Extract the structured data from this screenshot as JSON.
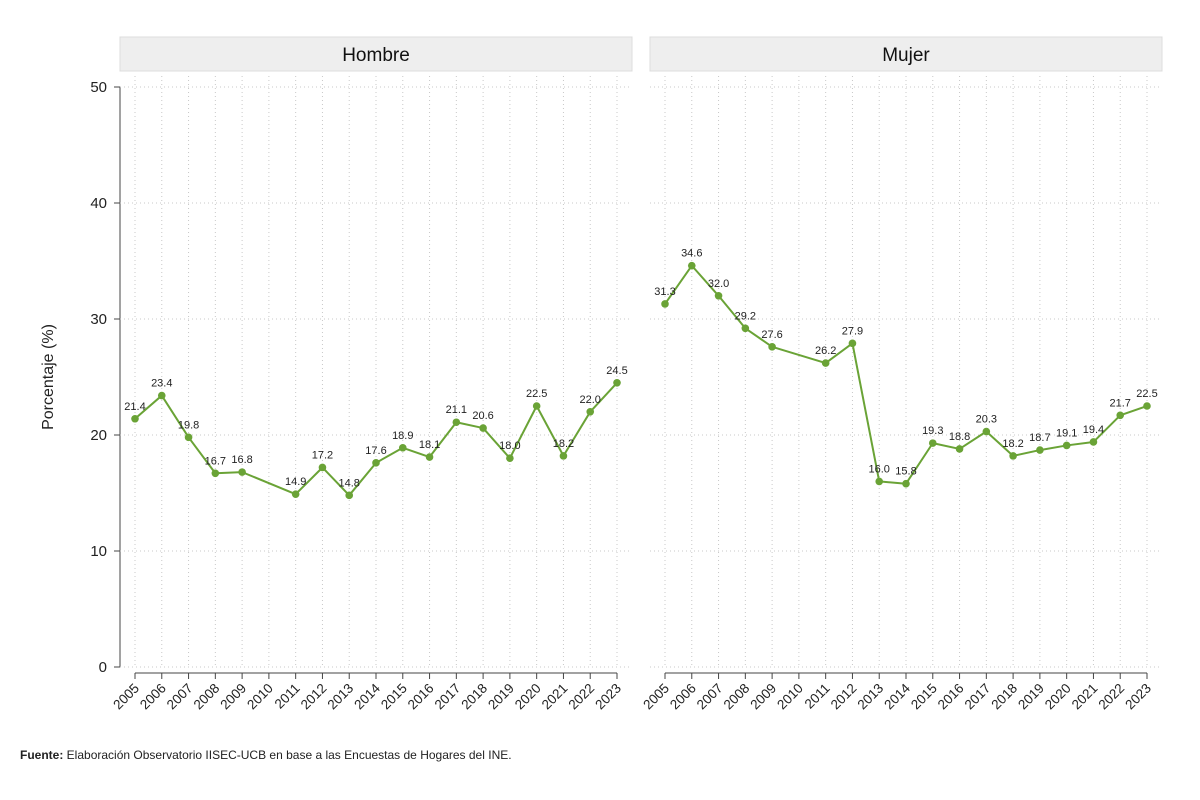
{
  "chart_data": {
    "type": "line",
    "ylabel": "Porcentaje (%)",
    "ylim": [
      0,
      50
    ],
    "yticks": [
      "0",
      "10",
      "20",
      "30",
      "40",
      "50"
    ],
    "grid": true,
    "line_color": "#6aa336",
    "years": [
      "2005",
      "2006",
      "2007",
      "2008",
      "2009",
      "2010",
      "2011",
      "2012",
      "2013",
      "2014",
      "2015",
      "2016",
      "2017",
      "2018",
      "2019",
      "2020",
      "2021",
      "2022",
      "2023"
    ],
    "panels": [
      {
        "title": "Hombre",
        "points": [
          {
            "x": "2005",
            "y": 21.4,
            "label": "21.4"
          },
          {
            "x": "2006",
            "y": 23.4,
            "label": "23.4"
          },
          {
            "x": "2007",
            "y": 19.8,
            "label": "19.8"
          },
          {
            "x": "2008",
            "y": 16.7,
            "label": "16.7"
          },
          {
            "x": "2009",
            "y": 16.8,
            "label": "16.8"
          },
          {
            "x": "2011",
            "y": 14.9,
            "label": "14.9"
          },
          {
            "x": "2012",
            "y": 17.2,
            "label": "17.2"
          },
          {
            "x": "2013",
            "y": 14.8,
            "label": "14.8"
          },
          {
            "x": "2014",
            "y": 17.6,
            "label": "17.6"
          },
          {
            "x": "2015",
            "y": 18.9,
            "label": "18.9"
          },
          {
            "x": "2016",
            "y": 18.1,
            "label": "18.1"
          },
          {
            "x": "2017",
            "y": 21.1,
            "label": "21.1"
          },
          {
            "x": "2018",
            "y": 20.6,
            "label": "20.6"
          },
          {
            "x": "2019",
            "y": 18.0,
            "label": "18.0"
          },
          {
            "x": "2020",
            "y": 22.5,
            "label": "22.5"
          },
          {
            "x": "2021",
            "y": 18.2,
            "label": "18.2"
          },
          {
            "x": "2022",
            "y": 22.0,
            "label": "22.0"
          },
          {
            "x": "2023",
            "y": 24.5,
            "label": "24.5"
          }
        ]
      },
      {
        "title": "Mujer",
        "points": [
          {
            "x": "2005",
            "y": 31.3,
            "label": "31.3"
          },
          {
            "x": "2006",
            "y": 34.6,
            "label": "34.6"
          },
          {
            "x": "2007",
            "y": 32.0,
            "label": "32.0"
          },
          {
            "x": "2008",
            "y": 29.2,
            "label": "29.2"
          },
          {
            "x": "2009",
            "y": 27.6,
            "label": "27.6"
          },
          {
            "x": "2011",
            "y": 26.2,
            "label": "26.2"
          },
          {
            "x": "2012",
            "y": 27.9,
            "label": "27.9"
          },
          {
            "x": "2013",
            "y": 16.0,
            "label": "16.0"
          },
          {
            "x": "2014",
            "y": 15.8,
            "label": "15.8"
          },
          {
            "x": "2015",
            "y": 19.3,
            "label": "19.3"
          },
          {
            "x": "2016",
            "y": 18.8,
            "label": "18.8"
          },
          {
            "x": "2017",
            "y": 20.3,
            "label": "20.3"
          },
          {
            "x": "2018",
            "y": 18.2,
            "label": "18.2"
          },
          {
            "x": "2019",
            "y": 18.7,
            "label": "18.7"
          },
          {
            "x": "2020",
            "y": 19.1,
            "label": "19.1"
          },
          {
            "x": "2021",
            "y": 19.4,
            "label": "19.4"
          },
          {
            "x": "2022",
            "y": 21.7,
            "label": "21.7"
          },
          {
            "x": "2023",
            "y": 22.5,
            "label": "22.5"
          }
        ]
      }
    ]
  },
  "footer": {
    "source_label": "Fuente:",
    "source_text": " Elaboración Observatorio IISEC-UCB en base a las Encuestas de Hogares del INE."
  }
}
